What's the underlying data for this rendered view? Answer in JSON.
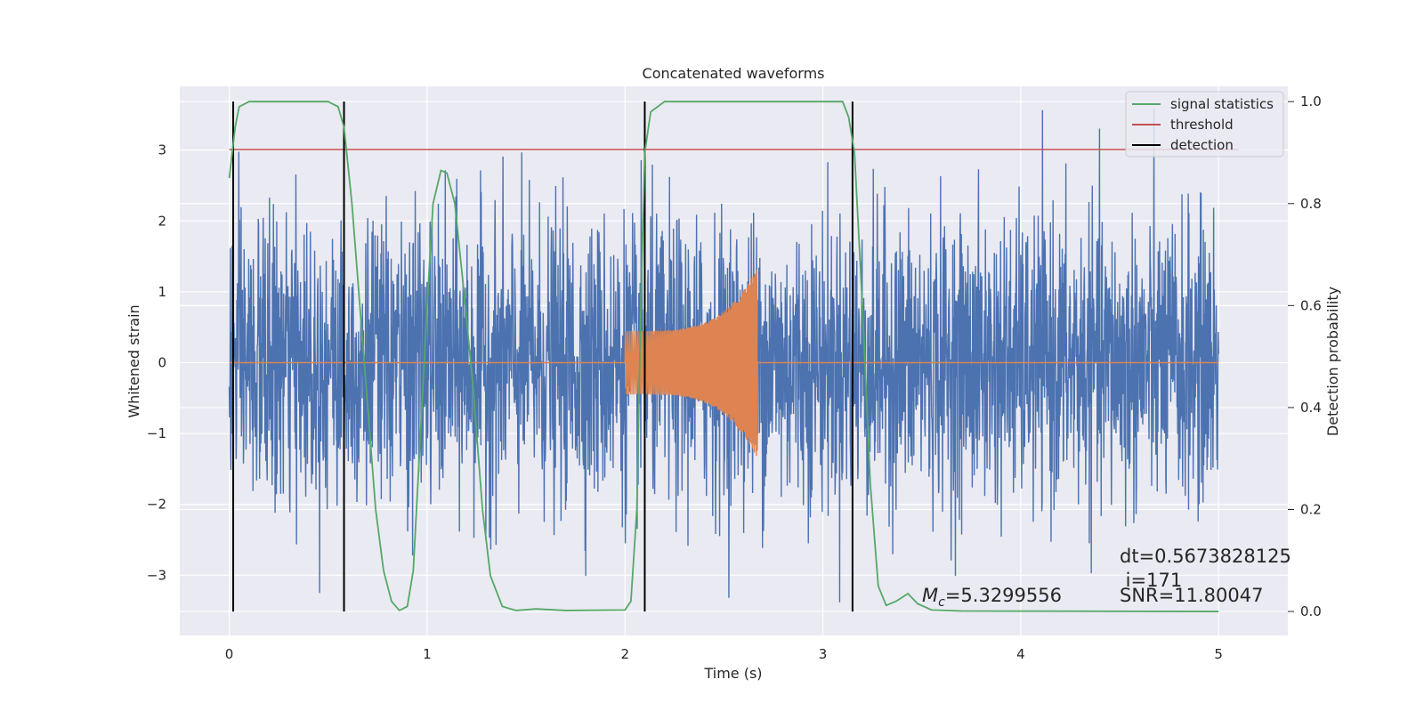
{
  "chart_data": {
    "type": "line",
    "title": "Concatenated waveforms",
    "xlabel": "Time (s)",
    "ylabel": "Whitened strain",
    "y2label": "Detection probability",
    "xlim": [
      -0.25,
      5.35
    ],
    "ylim": [
      -3.85,
      3.9
    ],
    "y2lim": [
      -0.047,
      1.03
    ],
    "x_ticks": [
      0,
      1,
      2,
      3,
      4,
      5
    ],
    "x_tick_labels": [
      "0",
      "1",
      "2",
      "3",
      "4",
      "5"
    ],
    "y_ticks": [
      -3,
      -2,
      -1,
      0,
      1,
      2,
      3
    ],
    "y_tick_labels": [
      "−3",
      "−2",
      "−1",
      "0",
      "1",
      "2",
      "3"
    ],
    "y2_ticks": [
      0.0,
      0.2,
      0.4,
      0.6,
      0.8,
      1.0
    ],
    "y2_tick_labels": [
      "0.0",
      "0.2",
      "0.4",
      "0.6",
      "0.8",
      "1.0"
    ],
    "grid": true,
    "legend_position": "top-right",
    "legend": [
      {
        "label": "signal statistics",
        "color": "#55a868"
      },
      {
        "label": "threshold",
        "color": "#c44e52"
      },
      {
        "label": "detection",
        "color": "#000000"
      }
    ],
    "colors": {
      "strain": "#4c72b0",
      "template": "#dd8452",
      "signal_statistics": "#55a868",
      "threshold": "#c44e52",
      "detection": "#000000",
      "plot_background": "#eaeaf2",
      "grid": "#ffffff"
    },
    "strain": {
      "x_range": [
        0,
        5
      ],
      "typical_amplitude": 1.0,
      "max_abs": 3.6
    },
    "template_waveform": {
      "x_range": [
        2.0,
        2.67
      ],
      "start_amplitude": 0.45,
      "peak_amplitude": 1.35
    },
    "threshold": {
      "value": 0.906,
      "x_range": [
        0,
        5.1
      ]
    },
    "detections": [
      0.02,
      0.58,
      2.1,
      3.15
    ],
    "signal_statistics": [
      [
        0.0,
        0.85
      ],
      [
        0.03,
        0.95
      ],
      [
        0.05,
        0.99
      ],
      [
        0.1,
        1.0
      ],
      [
        0.5,
        1.0
      ],
      [
        0.55,
        0.99
      ],
      [
        0.58,
        0.95
      ],
      [
        0.62,
        0.8
      ],
      [
        0.66,
        0.6
      ],
      [
        0.7,
        0.4
      ],
      [
        0.74,
        0.2
      ],
      [
        0.78,
        0.08
      ],
      [
        0.82,
        0.02
      ],
      [
        0.86,
        0.002
      ],
      [
        0.9,
        0.01
      ],
      [
        0.93,
        0.08
      ],
      [
        0.96,
        0.3
      ],
      [
        1.0,
        0.6
      ],
      [
        1.03,
        0.8
      ],
      [
        1.07,
        0.865
      ],
      [
        1.1,
        0.86
      ],
      [
        1.14,
        0.8
      ],
      [
        1.18,
        0.65
      ],
      [
        1.23,
        0.45
      ],
      [
        1.28,
        0.2
      ],
      [
        1.32,
        0.07
      ],
      [
        1.38,
        0.01
      ],
      [
        1.45,
        0.002
      ],
      [
        1.55,
        0.005
      ],
      [
        1.7,
        0.002
      ],
      [
        2.0,
        0.003
      ],
      [
        2.03,
        0.02
      ],
      [
        2.06,
        0.2
      ],
      [
        2.08,
        0.6
      ],
      [
        2.1,
        0.9
      ],
      [
        2.13,
        0.98
      ],
      [
        2.2,
        1.0
      ],
      [
        3.1,
        1.0
      ],
      [
        3.13,
        0.97
      ],
      [
        3.16,
        0.9
      ],
      [
        3.2,
        0.6
      ],
      [
        3.24,
        0.25
      ],
      [
        3.28,
        0.05
      ],
      [
        3.32,
        0.012
      ],
      [
        3.37,
        0.02
      ],
      [
        3.43,
        0.035
      ],
      [
        3.48,
        0.015
      ],
      [
        3.55,
        0.003
      ],
      [
        3.7,
        0.001
      ],
      [
        5.0,
        0.0
      ]
    ],
    "annotations": {
      "mc": "=5.3299556",
      "mc_symbol": "M",
      "mc_sub": "c",
      "dt": "dt=0.5673828125",
      "i": " i=171",
      "snr": "SNR=11.80047"
    }
  }
}
